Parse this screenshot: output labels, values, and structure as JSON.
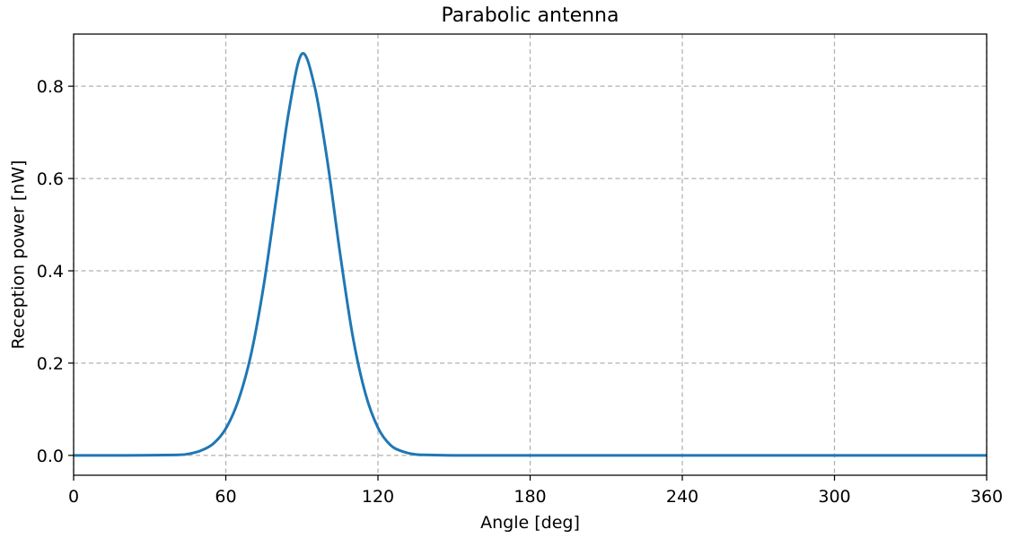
{
  "chart_data": {
    "type": "line",
    "title": "Parabolic antenna",
    "xlabel": "Angle [deg]",
    "ylabel": "Reception power [nW]",
    "xlim": [
      0,
      360
    ],
    "ylim": [
      -0.043,
      0.913
    ],
    "xticks": [
      0,
      60,
      120,
      180,
      240,
      300,
      360
    ],
    "yticks": [
      0.0,
      0.2,
      0.4,
      0.6,
      0.8
    ],
    "xtick_labels": [
      "0",
      "60",
      "120",
      "180",
      "240",
      "300",
      "360"
    ],
    "ytick_labels": [
      "0.0",
      "0.2",
      "0.4",
      "0.6",
      "0.8"
    ],
    "grid": true,
    "series": [
      {
        "color": "#1f77b4",
        "x": [
          0,
          20,
          40,
          45,
          50,
          55,
          60,
          65,
          70,
          75,
          80,
          85,
          90,
          95,
          100,
          105,
          110,
          115,
          120,
          125,
          130,
          135,
          140,
          150,
          160,
          200,
          250,
          300,
          360
        ],
        "y": [
          0.0,
          0.0,
          0.001,
          0.003,
          0.01,
          0.025,
          0.058,
          0.12,
          0.22,
          0.37,
          0.56,
          0.75,
          0.87,
          0.8,
          0.64,
          0.44,
          0.26,
          0.135,
          0.06,
          0.022,
          0.008,
          0.002,
          0.001,
          0.0,
          0.0,
          0.0,
          0.0,
          0.0,
          0.0
        ]
      }
    ]
  }
}
